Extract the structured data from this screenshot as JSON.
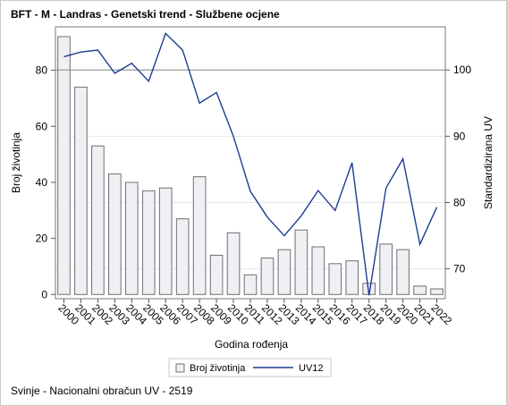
{
  "title": "BFT - M - Landras - Genetski trend - Službene ocjene",
  "footnote": "Svinje - Nacionalni obračun UV - 2519",
  "chart_data": {
    "type": "bar",
    "categories": [
      "2000",
      "2001",
      "2002",
      "2003",
      "2004",
      "2005",
      "2006",
      "2007",
      "2008",
      "2009",
      "2010",
      "2011",
      "2012",
      "2013",
      "2014",
      "2015",
      "2016",
      "2017",
      "2018",
      "2019",
      "2020",
      "2021",
      "2022"
    ],
    "series": [
      {
        "name": "Broj životinja",
        "type": "bar",
        "axis": "left",
        "values": [
          92,
          74,
          53,
          43,
          40,
          37,
          38,
          27,
          42,
          14,
          22,
          7,
          13,
          16,
          23,
          17,
          11,
          12,
          4,
          18,
          16,
          3,
          2
        ]
      },
      {
        "name": "UV12",
        "type": "line",
        "axis": "right",
        "values": [
          102,
          102.7,
          103,
          99.5,
          101,
          98.3,
          105.5,
          103,
          95,
          96.6,
          90,
          81.7,
          77.8,
          75,
          78,
          81.8,
          78.8,
          86,
          66,
          82.2,
          86.6,
          73.7,
          79.3
        ]
      }
    ],
    "xlabel": "Godina rođenja",
    "ylabel": "Broj životinja",
    "ylabel_right": "Standardizirana UV",
    "ylim": [
      -1.5,
      95.5
    ],
    "ylim_right": [
      65.5,
      106.5
    ],
    "yticks": [
      0,
      20,
      40,
      60,
      80
    ],
    "yticks_right": [
      70,
      80,
      90,
      100
    ],
    "reference_line_right": 100,
    "grid": "horizontal",
    "legend_position": "bottom",
    "colors": {
      "bar_fill": "#eef0f4",
      "bar_stroke": "#6f6f6f",
      "line": "#1c3d8f",
      "grid": "#e6e6e6",
      "reference": "#888888"
    }
  }
}
